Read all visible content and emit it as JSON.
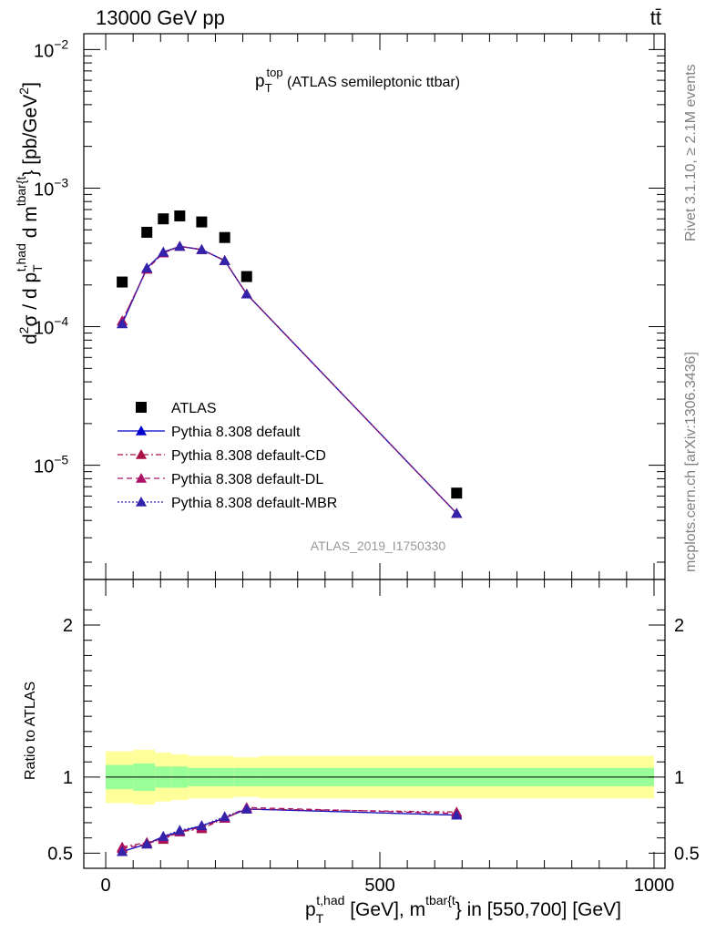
{
  "header": {
    "energy_label": "13000 GeV pp",
    "process_label": "tt̄"
  },
  "side_labels": {
    "rivet": "Rivet 3.1.10, ≥ 2.1M events",
    "mcplots": "mcplots.cern.ch [arXiv:1306.3436]"
  },
  "chart_data": [
    {
      "type": "scatter",
      "title_main": "p",
      "title_sup": "top",
      "title_sub": "T",
      "title_rest": " (ATLAS semileptonic ttbar)",
      "watermark": "ATLAS_2019_I1750330",
      "ylabel_parts": {
        "d2": "d",
        "sup2": "2",
        "sigma": "σ / d p",
        "sub_T": "T",
        "sup_thad": "t,had",
        "dm": " d m",
        "sup_tbar": "tbar{t",
        "close": "} [pb/GeV",
        "unit_sup": "2",
        "end": "]"
      },
      "y_scale": "log",
      "ylim": [
        1.5e-06,
        0.013
      ],
      "y_ticks": [
        {
          "value": 1e-05,
          "label_base": "10",
          "label_exp": "−5"
        },
        {
          "value": 0.0001,
          "label_base": "10",
          "label_exp": "−4"
        },
        {
          "value": 0.001,
          "label_base": "10",
          "label_exp": "−3"
        },
        {
          "value": 0.01,
          "label_base": "10",
          "label_exp": "−2"
        }
      ],
      "xlim": [
        -40,
        1020
      ],
      "legend_position": "bottom-left",
      "series": [
        {
          "name": "ATLAS",
          "kind": "data",
          "color": "#000000",
          "marker": "square",
          "x": [
            30,
            75,
            105,
            135,
            175,
            217,
            257,
            640
          ],
          "y": [
            0.00021,
            0.00048,
            0.0006,
            0.00063,
            0.00057,
            0.00044,
            0.00023,
            6.3e-06
          ]
        },
        {
          "name": "Pythia 8.308 default",
          "kind": "mc",
          "color": "#0000cc",
          "marker": "triangle",
          "dash": "none",
          "x": [
            30,
            75,
            105,
            135,
            175,
            217,
            257,
            640
          ],
          "y": [
            0.000105,
            0.000265,
            0.000345,
            0.00038,
            0.00036,
            0.0003,
            0.000172,
            4.5e-06
          ]
        },
        {
          "name": "Pythia 8.308 default-CD",
          "kind": "mc",
          "color": "#aa1144",
          "marker": "triangle",
          "dash": "6 3 2 3",
          "x": [
            30,
            75,
            105,
            135,
            175,
            217,
            257,
            640
          ],
          "y": [
            0.00011,
            0.00026,
            0.00034,
            0.00038,
            0.00036,
            0.0003,
            0.000172,
            4.5e-06
          ]
        },
        {
          "name": "Pythia 8.308 default-DL",
          "kind": "mc",
          "color": "#aa1166",
          "marker": "triangle",
          "dash": "6 4",
          "x": [
            30,
            75,
            105,
            135,
            175,
            217,
            257,
            640
          ],
          "y": [
            0.00011,
            0.00026,
            0.00034,
            0.00038,
            0.00036,
            0.0003,
            0.000172,
            4.5e-06
          ]
        },
        {
          "name": "Pythia 8.308 default-MBR",
          "kind": "mc",
          "color": "#3322aa",
          "marker": "triangle",
          "dash": "2 2",
          "x": [
            30,
            75,
            105,
            135,
            175,
            217,
            257,
            640
          ],
          "y": [
            0.000105,
            0.000265,
            0.000345,
            0.00038,
            0.00036,
            0.0003,
            0.000172,
            4.5e-06
          ]
        }
      ]
    },
    {
      "type": "line",
      "ylabel": "Ratio to ATLAS",
      "ylim": [
        0.4,
        2.3
      ],
      "y_ticks": [
        0.5,
        1,
        2
      ],
      "xlim": [
        -40,
        1020
      ],
      "x_ticks": [
        0,
        500,
        1000
      ],
      "xlabel_parts": {
        "p": "p",
        "sub_T": "T",
        "sup_thad": "t,had",
        "mid": " [GeV], m",
        "sup_tbar": "tbar{t",
        "end": "} in [550,700] [GeV]"
      },
      "bands": {
        "x_edges": [
          0,
          50,
          90,
          120,
          150,
          200,
          233,
          280,
          1000
        ],
        "yellow_half_widths": [
          0.17,
          0.18,
          0.16,
          0.15,
          0.14,
          0.14,
          0.13,
          0.14
        ],
        "green_half_widths": [
          0.08,
          0.09,
          0.07,
          0.07,
          0.06,
          0.06,
          0.06,
          0.06
        ],
        "yellow_color": "#ffff99",
        "green_color": "#99ff99"
      },
      "series": [
        {
          "name": "Pythia 8.308 default",
          "color": "#0000cc",
          "dash": "none",
          "x": [
            30,
            75,
            105,
            135,
            175,
            217,
            257,
            640
          ],
          "y": [
            0.51,
            0.56,
            0.61,
            0.64,
            0.68,
            0.73,
            0.79,
            0.75
          ]
        },
        {
          "name": "Pythia 8.308 default-CD",
          "color": "#aa1144",
          "dash": "6 3 2 3",
          "x": [
            30,
            75,
            105,
            135,
            175,
            217,
            257,
            640
          ],
          "y": [
            0.54,
            0.57,
            0.59,
            0.64,
            0.66,
            0.73,
            0.79,
            0.77
          ]
        },
        {
          "name": "Pythia 8.308 default-DL",
          "color": "#aa1166",
          "dash": "6 4",
          "x": [
            30,
            75,
            105,
            135,
            175,
            217,
            257,
            640
          ],
          "y": [
            0.53,
            0.56,
            0.6,
            0.64,
            0.67,
            0.73,
            0.8,
            0.76
          ]
        },
        {
          "name": "Pythia 8.308 default-MBR",
          "color": "#3322aa",
          "dash": "2 2",
          "x": [
            30,
            75,
            105,
            135,
            175,
            217,
            257,
            640
          ],
          "y": [
            0.51,
            0.56,
            0.61,
            0.65,
            0.68,
            0.74,
            0.79,
            0.75
          ]
        }
      ]
    }
  ]
}
